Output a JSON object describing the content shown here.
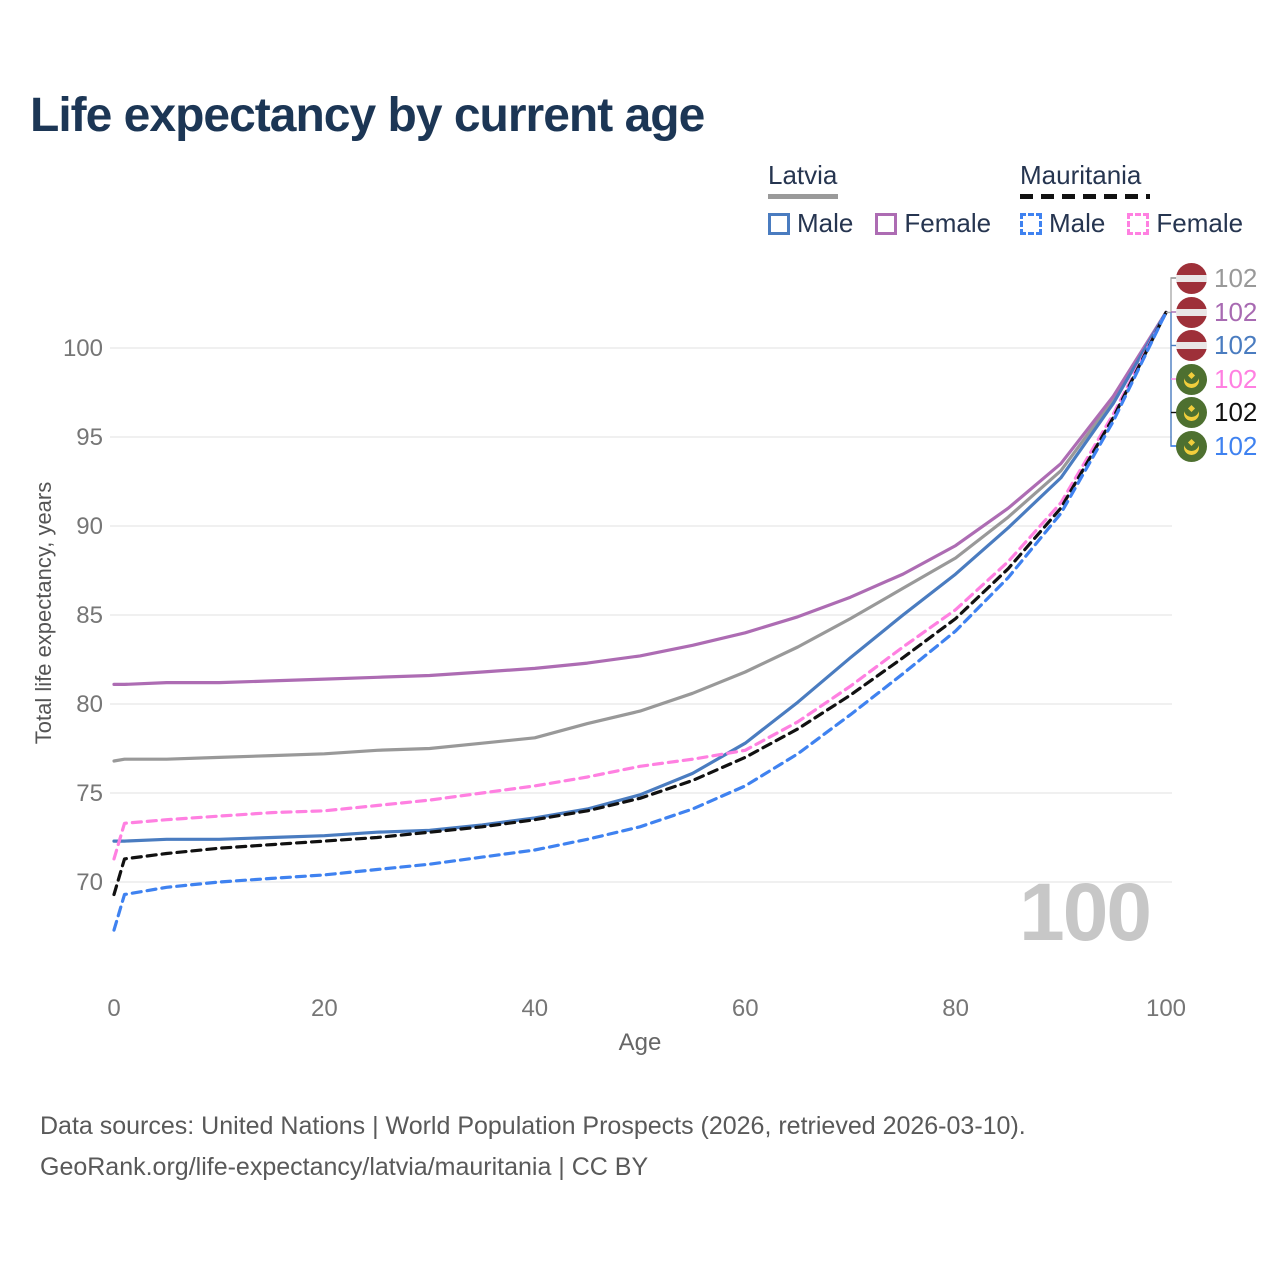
{
  "title": "Life expectancy by current age",
  "legend": {
    "groups": [
      {
        "country": "Latvia",
        "style": "solid",
        "items": [
          {
            "label": "Male",
            "color": "#4a7cc0"
          },
          {
            "label": "Female",
            "color": "#ad6cb3"
          }
        ]
      },
      {
        "country": "Mauritania",
        "style": "dashed",
        "items": [
          {
            "label": "Male",
            "color": "#3f82f0"
          },
          {
            "label": "Female",
            "color": "#ff80e1"
          }
        ]
      }
    ]
  },
  "watermark": "100",
  "right_labels": [
    {
      "flag": "latvia",
      "value": "102",
      "color": "#999999"
    },
    {
      "flag": "latvia",
      "value": "102",
      "color": "#a86ab2"
    },
    {
      "flag": "latvia",
      "value": "102",
      "color": "#4a7cc0"
    },
    {
      "flag": "mauritania",
      "value": "102",
      "color": "#ff80e1"
    },
    {
      "flag": "mauritania",
      "value": "102",
      "color": "#111111"
    },
    {
      "flag": "mauritania",
      "value": "102",
      "color": "#3f82f0"
    }
  ],
  "footer": {
    "line1": "Data sources: United Nations | World Population Prospects (2026, retrieved 2026-03-10).",
    "line2": "GeoRank.org/life-expectancy/latvia/mauritania | CC BY"
  },
  "chart_data": {
    "type": "line",
    "title": "Life expectancy by current age",
    "xlabel": "Age",
    "ylabel": "Total life expectancy, years",
    "xlim": [
      0,
      100
    ],
    "ylim_visible": [
      65,
      103
    ],
    "xticks": [
      0,
      20,
      40,
      60,
      80,
      100
    ],
    "yticks": [
      100,
      95,
      90,
      85,
      80,
      75,
      70
    ],
    "grid": "horizontal",
    "legend_position": "top-right",
    "x": [
      0,
      1,
      5,
      10,
      15,
      20,
      25,
      30,
      35,
      40,
      45,
      50,
      55,
      60,
      65,
      70,
      75,
      80,
      85,
      90,
      95,
      100
    ],
    "series": [
      {
        "name": "Latvia Female",
        "country": "Latvia",
        "sex": "female",
        "line": "solid",
        "color": "#ad6cb3",
        "values": [
          81.1,
          81.1,
          81.2,
          81.2,
          81.3,
          81.4,
          81.5,
          81.6,
          81.8,
          82.0,
          82.3,
          82.7,
          83.3,
          84.0,
          84.9,
          86.0,
          87.3,
          88.9,
          91.0,
          93.5,
          97.3,
          102
        ]
      },
      {
        "name": "Latvia (all)",
        "country": "Latvia",
        "sex": "all",
        "line": "solid",
        "color": "#999999",
        "values": [
          76.8,
          76.9,
          76.9,
          77.0,
          77.1,
          77.2,
          77.4,
          77.5,
          77.8,
          78.1,
          78.9,
          79.6,
          80.6,
          81.8,
          83.2,
          84.8,
          86.5,
          88.2,
          90.5,
          93.1,
          97.1,
          102
        ]
      },
      {
        "name": "Latvia Male",
        "country": "Latvia",
        "sex": "male",
        "line": "solid",
        "color": "#4a7cc0",
        "values": [
          72.3,
          72.3,
          72.4,
          72.4,
          72.5,
          72.6,
          72.8,
          72.9,
          73.2,
          73.6,
          74.1,
          74.9,
          76.1,
          77.8,
          80.1,
          82.6,
          85.0,
          87.3,
          89.9,
          92.7,
          96.9,
          102
        ]
      },
      {
        "name": "Mauritania Female",
        "country": "Mauritania",
        "sex": "female",
        "line": "dashed",
        "color": "#ff80e1",
        "values": [
          71.3,
          73.3,
          73.5,
          73.7,
          73.9,
          74.0,
          74.3,
          74.6,
          75.0,
          75.4,
          75.9,
          76.5,
          76.9,
          77.4,
          79.0,
          81.0,
          83.2,
          85.3,
          88.0,
          91.3,
          96.3,
          102
        ]
      },
      {
        "name": "Mauritania (all)",
        "country": "Mauritania",
        "sex": "all",
        "line": "dashed",
        "color": "#111111",
        "values": [
          69.3,
          71.3,
          71.6,
          71.9,
          72.1,
          72.3,
          72.5,
          72.8,
          73.1,
          73.5,
          74.0,
          74.7,
          75.7,
          77.0,
          78.6,
          80.5,
          82.6,
          84.8,
          87.6,
          91.0,
          96.1,
          102
        ]
      },
      {
        "name": "Mauritania Male",
        "country": "Mauritania",
        "sex": "male",
        "line": "dashed",
        "color": "#3f82f0",
        "values": [
          67.3,
          69.3,
          69.7,
          70.0,
          70.2,
          70.4,
          70.7,
          71.0,
          71.4,
          71.8,
          72.4,
          73.1,
          74.1,
          75.4,
          77.2,
          79.4,
          81.7,
          84.1,
          87.1,
          90.7,
          95.9,
          102
        ]
      }
    ],
    "end_label_value": 102
  }
}
